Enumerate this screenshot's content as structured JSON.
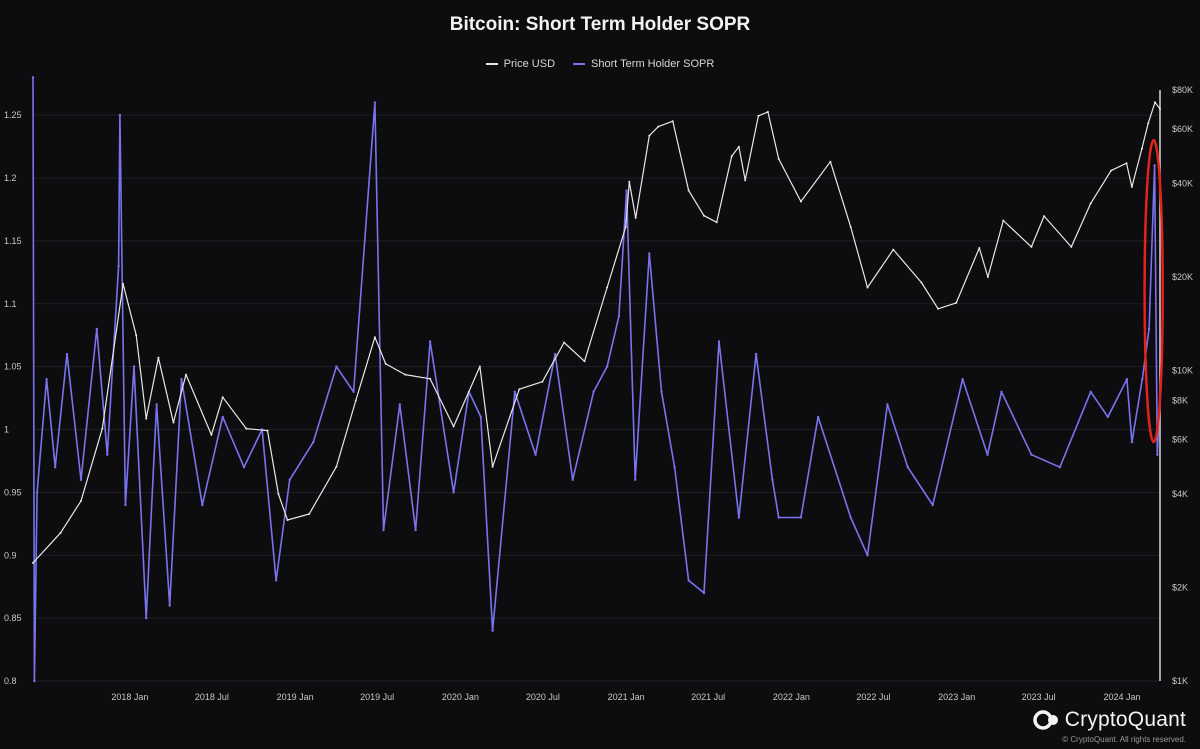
{
  "title": "Bitcoin: Short Term Holder SOPR",
  "legend": {
    "price_label": "Price USD",
    "sopr_label": "Short Term Holder SOPR"
  },
  "colors": {
    "background": "#0d0d10",
    "price": "#e8e8e8",
    "sopr": "#7b73ee",
    "highlight": "#e0241b",
    "grid": "#1f1f24"
  },
  "brand": {
    "name": "CryptoQuant",
    "copyright": "© CryptoQuant. All rights reserved."
  },
  "chart_data": {
    "type": "line",
    "title": "Bitcoin: Short Term Holder SOPR",
    "xlabel": "",
    "ylabel": "",
    "x_ticks": [
      "2018 Jan",
      "2018 Jul",
      "2019 Jan",
      "2019 Jul",
      "2020 Jan",
      "2020 Jul",
      "2021 Jan",
      "2021 Jul",
      "2022 Jan",
      "2022 Jul",
      "2023 Jan",
      "2023 Jul",
      "2024 Jan"
    ],
    "x_range": [
      "2017-06-01",
      "2024-03-25"
    ],
    "y_left": {
      "range": [
        0.8,
        1.27
      ],
      "ticks": [
        "0.8",
        "0.85",
        "0.9",
        "0.95",
        "1",
        "1.05",
        "1.1",
        "1.15",
        "1.2",
        "1.25"
      ]
    },
    "y_right": {
      "scale": "log",
      "range": [
        1000,
        80000
      ],
      "ticks": [
        {
          "value": 1000,
          "label": "$1K"
        },
        {
          "value": 2000,
          "label": "$2K"
        },
        {
          "value": 4000,
          "label": "$4K"
        },
        {
          "value": 6000,
          "label": "$6K"
        },
        {
          "value": 8000,
          "label": "$8K"
        },
        {
          "value": 10000,
          "label": "$10K"
        },
        {
          "value": 20000,
          "label": "$20K"
        },
        {
          "value": 40000,
          "label": "$40K"
        },
        {
          "value": 60000,
          "label": "$60K"
        },
        {
          "value": 80000,
          "label": "$80K"
        }
      ]
    },
    "grid": true,
    "legend_position": "top-center",
    "series": [
      {
        "name": "Price USD",
        "axis": "right",
        "points": [
          [
            "2017-06-01",
            2400
          ],
          [
            "2017-08-01",
            3000
          ],
          [
            "2017-09-15",
            3800
          ],
          [
            "2017-11-01",
            6500
          ],
          [
            "2017-12-17",
            19000
          ],
          [
            "2018-01-15",
            13000
          ],
          [
            "2018-02-06",
            7000
          ],
          [
            "2018-03-05",
            11000
          ],
          [
            "2018-04-07",
            6800
          ],
          [
            "2018-05-05",
            9700
          ],
          [
            "2018-06-30",
            6200
          ],
          [
            "2018-07-25",
            8200
          ],
          [
            "2018-09-15",
            6500
          ],
          [
            "2018-11-01",
            6400
          ],
          [
            "2018-11-25",
            4000
          ],
          [
            "2018-12-15",
            3300
          ],
          [
            "2019-02-01",
            3450
          ],
          [
            "2019-04-02",
            4900
          ],
          [
            "2019-05-15",
            8000
          ],
          [
            "2019-06-26",
            12800
          ],
          [
            "2019-07-20",
            10500
          ],
          [
            "2019-09-01",
            9700
          ],
          [
            "2019-10-26",
            9400
          ],
          [
            "2019-12-17",
            6600
          ],
          [
            "2020-02-13",
            10300
          ],
          [
            "2020-03-12",
            4900
          ],
          [
            "2020-05-10",
            8700
          ],
          [
            "2020-06-30",
            9200
          ],
          [
            "2020-08-17",
            12300
          ],
          [
            "2020-10-01",
            10700
          ],
          [
            "2020-11-20",
            18500
          ],
          [
            "2020-12-31",
            29000
          ],
          [
            "2021-01-08",
            40500
          ],
          [
            "2021-01-22",
            31000
          ],
          [
            "2021-02-21",
            57000
          ],
          [
            "2021-03-13",
            61000
          ],
          [
            "2021-04-14",
            63500
          ],
          [
            "2021-05-19",
            38000
          ],
          [
            "2021-06-22",
            31500
          ],
          [
            "2021-07-20",
            30000
          ],
          [
            "2021-08-22",
            49000
          ],
          [
            "2021-09-07",
            52500
          ],
          [
            "2021-09-21",
            41000
          ],
          [
            "2021-10-20",
            66000
          ],
          [
            "2021-11-10",
            68000
          ],
          [
            "2021-12-04",
            48000
          ],
          [
            "2022-01-22",
            35000
          ],
          [
            "2022-03-28",
            47000
          ],
          [
            "2022-05-12",
            29000
          ],
          [
            "2022-06-18",
            18500
          ],
          [
            "2022-08-14",
            24500
          ],
          [
            "2022-10-15",
            19200
          ],
          [
            "2022-11-21",
            15800
          ],
          [
            "2022-12-31",
            16500
          ],
          [
            "2023-02-20",
            24800
          ],
          [
            "2023-03-11",
            20000
          ],
          [
            "2023-04-14",
            30400
          ],
          [
            "2023-06-15",
            25000
          ],
          [
            "2023-07-13",
            31400
          ],
          [
            "2023-09-11",
            25000
          ],
          [
            "2023-10-24",
            34500
          ],
          [
            "2023-12-08",
            44000
          ],
          [
            "2024-01-11",
            46500
          ],
          [
            "2024-01-23",
            39000
          ],
          [
            "2024-02-14",
            51800
          ],
          [
            "2024-02-28",
            62500
          ],
          [
            "2024-03-14",
            73000
          ],
          [
            "2024-03-25",
            69500
          ]
        ]
      },
      {
        "name": "Short Term Holder SOPR",
        "axis": "left",
        "points": [
          [
            "2017-06-01",
            1.28
          ],
          [
            "2017-06-04",
            0.8
          ],
          [
            "2017-06-10",
            0.95
          ],
          [
            "2017-07-01",
            1.04
          ],
          [
            "2017-07-20",
            0.97
          ],
          [
            "2017-08-15",
            1.06
          ],
          [
            "2017-09-15",
            0.96
          ],
          [
            "2017-10-20",
            1.08
          ],
          [
            "2017-11-12",
            0.98
          ],
          [
            "2017-12-07",
            1.13
          ],
          [
            "2017-12-10",
            1.25
          ],
          [
            "2017-12-22",
            0.94
          ],
          [
            "2018-01-10",
            1.05
          ],
          [
            "2018-02-06",
            0.85
          ],
          [
            "2018-03-01",
            1.02
          ],
          [
            "2018-03-30",
            0.86
          ],
          [
            "2018-04-25",
            1.04
          ],
          [
            "2018-06-10",
            0.94
          ],
          [
            "2018-07-25",
            1.01
          ],
          [
            "2018-09-10",
            0.97
          ],
          [
            "2018-10-20",
            1.0
          ],
          [
            "2018-11-20",
            0.88
          ],
          [
            "2018-12-20",
            0.96
          ],
          [
            "2019-02-10",
            0.99
          ],
          [
            "2019-04-02",
            1.05
          ],
          [
            "2019-05-10",
            1.03
          ],
          [
            "2019-06-26",
            1.26
          ],
          [
            "2019-07-15",
            0.92
          ],
          [
            "2019-08-20",
            1.02
          ],
          [
            "2019-09-24",
            0.92
          ],
          [
            "2019-10-26",
            1.07
          ],
          [
            "2019-12-17",
            0.95
          ],
          [
            "2020-01-20",
            1.03
          ],
          [
            "2020-02-15",
            1.01
          ],
          [
            "2020-03-12",
            0.84
          ],
          [
            "2020-04-30",
            1.03
          ],
          [
            "2020-06-15",
            0.98
          ],
          [
            "2020-07-28",
            1.06
          ],
          [
            "2020-09-05",
            0.96
          ],
          [
            "2020-10-21",
            1.03
          ],
          [
            "2020-11-20",
            1.05
          ],
          [
            "2020-12-16",
            1.09
          ],
          [
            "2021-01-02",
            1.19
          ],
          [
            "2021-01-21",
            0.96
          ],
          [
            "2021-02-21",
            1.14
          ],
          [
            "2021-03-20",
            1.03
          ],
          [
            "2021-04-18",
            0.97
          ],
          [
            "2021-05-19",
            0.88
          ],
          [
            "2021-06-22",
            0.87
          ],
          [
            "2021-07-25",
            1.07
          ],
          [
            "2021-09-07",
            0.93
          ],
          [
            "2021-10-15",
            1.06
          ],
          [
            "2021-11-20",
            0.96
          ],
          [
            "2021-12-04",
            0.93
          ],
          [
            "2022-01-22",
            0.93
          ],
          [
            "2022-03-01",
            1.01
          ],
          [
            "2022-05-12",
            0.93
          ],
          [
            "2022-06-18",
            0.9
          ],
          [
            "2022-08-01",
            1.02
          ],
          [
            "2022-09-15",
            0.97
          ],
          [
            "2022-11-09",
            0.94
          ],
          [
            "2023-01-14",
            1.04
          ],
          [
            "2023-03-10",
            0.98
          ],
          [
            "2023-04-10",
            1.03
          ],
          [
            "2023-06-15",
            0.98
          ],
          [
            "2023-08-17",
            0.97
          ],
          [
            "2023-10-24",
            1.03
          ],
          [
            "2023-12-01",
            1.01
          ],
          [
            "2024-01-12",
            1.04
          ],
          [
            "2024-01-23",
            0.99
          ],
          [
            "2024-02-15",
            1.04
          ],
          [
            "2024-03-01",
            1.08
          ],
          [
            "2024-03-13",
            1.21
          ],
          [
            "2024-03-19",
            0.98
          ],
          [
            "2024-03-25",
            1.03
          ]
        ]
      }
    ],
    "annotations": [
      {
        "type": "ellipse",
        "label": "",
        "x_start": "2024-02-20",
        "x_end": "2024-03-31",
        "y_low": 0.99,
        "y_high": 1.23
      }
    ]
  }
}
